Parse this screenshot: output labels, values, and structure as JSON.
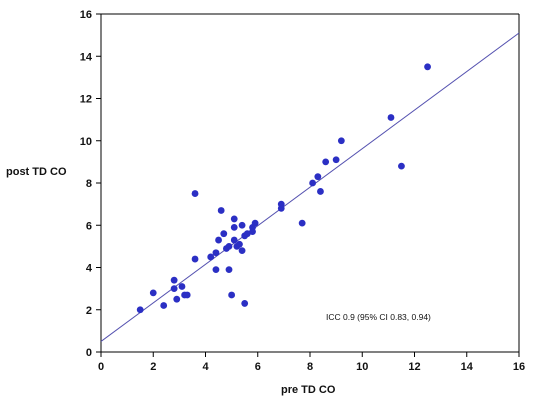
{
  "chart_data": {
    "type": "scatter",
    "title": "",
    "xlabel": "pre TD CO",
    "ylabel": "post TD CO",
    "xlim": [
      0,
      16
    ],
    "ylim": [
      0,
      16
    ],
    "xticks": [
      0,
      2,
      4,
      6,
      8,
      10,
      12,
      14,
      16
    ],
    "yticks": [
      0,
      2,
      4,
      6,
      8,
      10,
      12,
      14,
      16
    ],
    "grid": false,
    "annotation": "ICC 0.9 (95% CI 0.83, 0.94)",
    "colors": {
      "points": "#2b2fc4",
      "fit_line": "#5552b0",
      "axes": "#000000"
    },
    "fit_line": {
      "x": [
        0,
        16
      ],
      "y": [
        0.5,
        15.1
      ]
    },
    "points": [
      {
        "x": 1.5,
        "y": 2.0
      },
      {
        "x": 2.0,
        "y": 2.8
      },
      {
        "x": 2.4,
        "y": 2.2
      },
      {
        "x": 2.8,
        "y": 3.4
      },
      {
        "x": 2.8,
        "y": 3.0
      },
      {
        "x": 2.9,
        "y": 2.5
      },
      {
        "x": 3.1,
        "y": 3.1
      },
      {
        "x": 3.2,
        "y": 2.7
      },
      {
        "x": 3.3,
        "y": 2.7
      },
      {
        "x": 3.6,
        "y": 4.4
      },
      {
        "x": 3.6,
        "y": 7.5
      },
      {
        "x": 4.2,
        "y": 4.5
      },
      {
        "x": 4.4,
        "y": 4.7
      },
      {
        "x": 4.4,
        "y": 3.9
      },
      {
        "x": 4.5,
        "y": 5.3
      },
      {
        "x": 4.6,
        "y": 6.7
      },
      {
        "x": 4.7,
        "y": 5.6
      },
      {
        "x": 4.8,
        "y": 4.9
      },
      {
        "x": 4.9,
        "y": 3.9
      },
      {
        "x": 4.9,
        "y": 5.0
      },
      {
        "x": 5.0,
        "y": 2.7
      },
      {
        "x": 5.1,
        "y": 5.3
      },
      {
        "x": 5.1,
        "y": 5.9
      },
      {
        "x": 5.1,
        "y": 6.3
      },
      {
        "x": 5.2,
        "y": 5.0
      },
      {
        "x": 5.3,
        "y": 5.1
      },
      {
        "x": 5.4,
        "y": 4.8
      },
      {
        "x": 5.4,
        "y": 6.0
      },
      {
        "x": 5.5,
        "y": 5.5
      },
      {
        "x": 5.5,
        "y": 2.3
      },
      {
        "x": 5.6,
        "y": 5.6
      },
      {
        "x": 5.8,
        "y": 5.9
      },
      {
        "x": 5.8,
        "y": 5.7
      },
      {
        "x": 5.9,
        "y": 6.1
      },
      {
        "x": 6.9,
        "y": 6.8
      },
      {
        "x": 6.9,
        "y": 7.0
      },
      {
        "x": 7.7,
        "y": 6.1
      },
      {
        "x": 8.1,
        "y": 8.0
      },
      {
        "x": 8.3,
        "y": 8.3
      },
      {
        "x": 8.4,
        "y": 7.6
      },
      {
        "x": 8.6,
        "y": 9.0
      },
      {
        "x": 9.0,
        "y": 9.1
      },
      {
        "x": 9.2,
        "y": 10.0
      },
      {
        "x": 11.1,
        "y": 11.1
      },
      {
        "x": 11.5,
        "y": 8.8
      },
      {
        "x": 12.5,
        "y": 13.5
      }
    ]
  }
}
